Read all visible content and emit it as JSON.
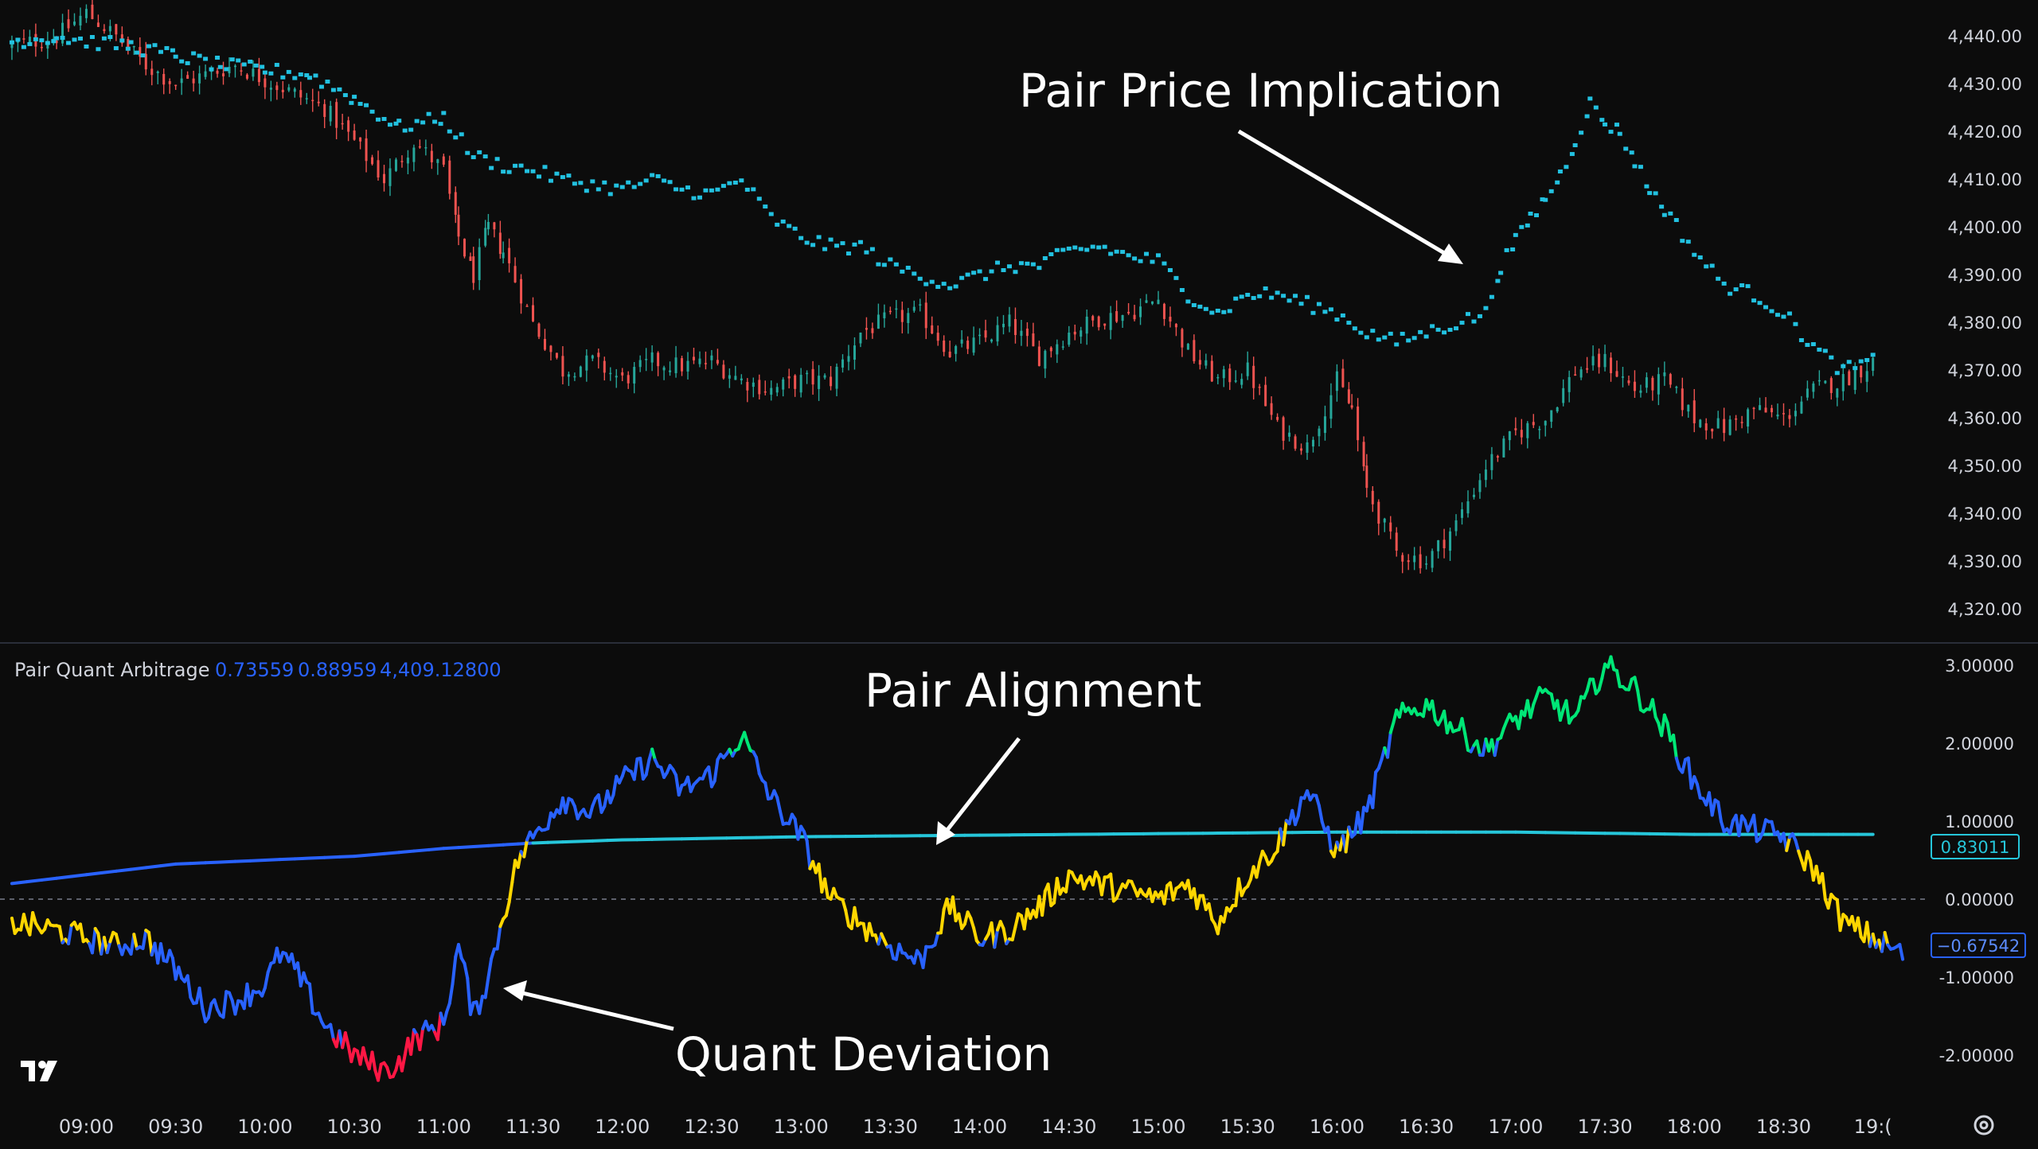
{
  "price_axis": [
    "4,440.00",
    "4,430.00",
    "4,420.00",
    "4,410.00",
    "4,400.00",
    "4,390.00",
    "4,380.00",
    "4,370.00",
    "4,360.00",
    "4,350.00",
    "4,340.00",
    "4,330.00",
    "4,320.00"
  ],
  "osc_axis": [
    "3.00000",
    "2.00000",
    "1.00000",
    "0.00000",
    "-1.00000",
    "-2.00000"
  ],
  "time_axis": [
    "09:00",
    "09:30",
    "10:00",
    "10:30",
    "11:00",
    "11:30",
    "12:00",
    "12:30",
    "13:00",
    "13:30",
    "14:00",
    "14:30",
    "15:00",
    "15:30",
    "16:00",
    "16:30",
    "17:00",
    "17:30",
    "18:00",
    "18:30",
    "19:("
  ],
  "indicator": {
    "name": "Pair Quant Arbitrage",
    "values": [
      "0.73559",
      "0.88959",
      "4,409.12800"
    ]
  },
  "badges": {
    "alignment": "0.83011",
    "deviation": "−0.67542"
  },
  "annotations": {
    "price_implication": "Pair Price Implication",
    "alignment": "Pair Alignment",
    "deviation": "Quant Deviation"
  },
  "colors": {
    "background": "#0c0c0c",
    "candle_up": "#26a69a",
    "candle_down": "#ef5350",
    "implied_dots": "#22c1e0",
    "alignment_line": "#26c6da",
    "alignment_line_early": "#2962ff",
    "osc_blue": "#2962ff",
    "osc_yellow": "#ffd600",
    "osc_green": "#00e676",
    "osc_red": "#ff1744"
  },
  "logo": "tradingview-logo",
  "settings_icon": "gear-icon",
  "chart_data": [
    {
      "type": "candlestick",
      "title": "",
      "ylim": [
        4316,
        4446
      ],
      "x_range": [
        "09:00",
        "19:00"
      ],
      "series": [
        {
          "name": "",
          "kind": "price-close",
          "points": [
            [
              "08:35",
              4438
            ],
            [
              "08:50",
              4440
            ],
            [
              "09:00",
              4445
            ],
            [
              "09:10",
              4440
            ],
            [
              "09:20",
              4434
            ],
            [
              "09:30",
              4430
            ],
            [
              "09:40",
              4432
            ],
            [
              "09:50",
              4434
            ],
            [
              "10:00",
              4431
            ],
            [
              "10:10",
              4428
            ],
            [
              "10:20",
              4425
            ],
            [
              "10:30",
              4418
            ],
            [
              "10:40",
              4410
            ],
            [
              "10:50",
              4418
            ],
            [
              "11:00",
              4412
            ],
            [
              "11:05",
              4398
            ],
            [
              "11:10",
              4390
            ],
            [
              "11:15",
              4400
            ],
            [
              "11:20",
              4395
            ],
            [
              "11:30",
              4380
            ],
            [
              "11:40",
              4370
            ],
            [
              "11:50",
              4372
            ],
            [
              "12:00",
              4368
            ],
            [
              "12:10",
              4372
            ],
            [
              "12:20",
              4371
            ],
            [
              "12:30",
              4372
            ],
            [
              "12:40",
              4368
            ],
            [
              "12:50",
              4366
            ],
            [
              "13:00",
              4368
            ],
            [
              "13:10",
              4368
            ],
            [
              "13:20",
              4378
            ],
            [
              "13:30",
              4381
            ],
            [
              "13:40",
              4382
            ],
            [
              "13:50",
              4374
            ],
            [
              "14:00",
              4376
            ],
            [
              "14:10",
              4380
            ],
            [
              "14:20",
              4373
            ],
            [
              "14:30",
              4378
            ],
            [
              "14:40",
              4381
            ],
            [
              "14:50",
              4382
            ],
            [
              "15:00",
              4385
            ],
            [
              "15:10",
              4374
            ],
            [
              "15:20",
              4368
            ],
            [
              "15:30",
              4370
            ],
            [
              "15:40",
              4358
            ],
            [
              "15:50",
              4354
            ],
            [
              "16:00",
              4368
            ],
            [
              "16:05",
              4362
            ],
            [
              "16:10",
              4345
            ],
            [
              "16:20",
              4332
            ],
            [
              "16:30",
              4330
            ],
            [
              "16:40",
              4338
            ],
            [
              "16:50",
              4350
            ],
            [
              "17:00",
              4357
            ],
            [
              "17:10",
              4360
            ],
            [
              "17:20",
              4370
            ],
            [
              "17:30",
              4372
            ],
            [
              "17:40",
              4366
            ],
            [
              "17:50",
              4368
            ],
            [
              "18:00",
              4360
            ],
            [
              "18:10",
              4358
            ],
            [
              "18:20",
              4362
            ],
            [
              "18:30",
              4360
            ],
            [
              "18:40",
              4366
            ],
            [
              "18:50",
              4368
            ],
            [
              "19:00",
              4372
            ]
          ]
        },
        {
          "name": "",
          "kind": "implied-price-dots",
          "points": [
            [
              "08:35",
              4439
            ],
            [
              "08:50",
              4440
            ],
            [
              "09:00",
              4439
            ],
            [
              "09:15",
              4438
            ],
            [
              "09:30",
              4436
            ],
            [
              "09:45",
              4434
            ],
            [
              "10:00",
              4433
            ],
            [
              "10:15",
              4432
            ],
            [
              "10:30",
              4427
            ],
            [
              "10:45",
              4421
            ],
            [
              "11:00",
              4423
            ],
            [
              "11:10",
              4415
            ],
            [
              "11:20",
              4413
            ],
            [
              "11:30",
              4412
            ],
            [
              "11:40",
              4410
            ],
            [
              "11:50",
              4409
            ],
            [
              "12:00",
              4408
            ],
            [
              "12:10",
              4410
            ],
            [
              "12:20",
              4408
            ],
            [
              "12:30",
              4407
            ],
            [
              "12:40",
              4410
            ],
            [
              "12:50",
              4402
            ],
            [
              "13:00",
              4398
            ],
            [
              "13:10",
              4396
            ],
            [
              "13:20",
              4396
            ],
            [
              "13:30",
              4392
            ],
            [
              "13:40",
              4390
            ],
            [
              "13:50",
              4388
            ],
            [
              "14:00",
              4390
            ],
            [
              "14:10",
              4392
            ],
            [
              "14:20",
              4392
            ],
            [
              "14:30",
              4395
            ],
            [
              "14:40",
              4396
            ],
            [
              "14:50",
              4394
            ],
            [
              "15:00",
              4393
            ],
            [
              "15:10",
              4386
            ],
            [
              "15:20",
              4382
            ],
            [
              "15:30",
              4386
            ],
            [
              "15:40",
              4386
            ],
            [
              "15:50",
              4384
            ],
            [
              "16:00",
              4382
            ],
            [
              "16:10",
              4378
            ],
            [
              "16:20",
              4376
            ],
            [
              "16:30",
              4378
            ],
            [
              "16:40",
              4380
            ],
            [
              "16:50",
              4382
            ],
            [
              "16:55",
              4392
            ],
            [
              "17:00",
              4397
            ],
            [
              "17:05",
              4402
            ],
            [
              "17:10",
              4406
            ],
            [
              "17:15",
              4411
            ],
            [
              "17:20",
              4418
            ],
            [
              "17:25",
              4426
            ],
            [
              "17:30",
              4422
            ],
            [
              "17:35",
              4420
            ],
            [
              "17:40",
              4414
            ],
            [
              "17:45",
              4408
            ],
            [
              "17:50",
              4404
            ],
            [
              "18:00",
              4395
            ],
            [
              "18:10",
              4388
            ],
            [
              "18:20",
              4386
            ],
            [
              "18:30",
              4382
            ],
            [
              "18:40",
              4375
            ],
            [
              "18:50",
              4370
            ],
            [
              "19:00",
              4372
            ]
          ]
        }
      ]
    },
    {
      "type": "line",
      "title": "Pair Quant Arbitrage",
      "ylim": [
        -2.6,
        3.6
      ],
      "series": [
        {
          "name": "",
          "kind": "oscillator",
          "color_states": [
            "blue",
            "yellow",
            "green",
            "red"
          ],
          "points": [
            [
              "08:35",
              -0.3
            ],
            [
              "08:50",
              -0.4
            ],
            [
              "09:00",
              -0.5
            ],
            [
              "09:10",
              -0.6
            ],
            [
              "09:20",
              -0.5
            ],
            [
              "09:30",
              -0.9
            ],
            [
              "09:40",
              -1.4
            ],
            [
              "09:50",
              -1.3
            ],
            [
              "10:00",
              -1.1
            ],
            [
              "10:05",
              -0.7
            ],
            [
              "10:10",
              -0.9
            ],
            [
              "10:20",
              -1.6
            ],
            [
              "10:30",
              -2.0
            ],
            [
              "10:40",
              -2.2
            ],
            [
              "10:45",
              -2.1
            ],
            [
              "10:50",
              -1.8
            ],
            [
              "11:00",
              -1.6
            ],
            [
              "11:05",
              -0.6
            ],
            [
              "11:10",
              -1.5
            ],
            [
              "11:15",
              -1.0
            ],
            [
              "11:20",
              -0.2
            ],
            [
              "11:25",
              0.5
            ],
            [
              "11:30",
              0.8
            ],
            [
              "11:40",
              1.3
            ],
            [
              "11:50",
              1.1
            ],
            [
              "12:00",
              1.5
            ],
            [
              "12:10",
              1.8
            ],
            [
              "12:20",
              1.4
            ],
            [
              "12:30",
              1.6
            ],
            [
              "12:40",
              2.1
            ],
            [
              "12:50",
              1.3
            ],
            [
              "13:00",
              0.8
            ],
            [
              "13:10",
              0.0
            ],
            [
              "13:20",
              -0.3
            ],
            [
              "13:30",
              -0.6
            ],
            [
              "13:40",
              -0.8
            ],
            [
              "13:50",
              -0.1
            ],
            [
              "14:00",
              -0.5
            ],
            [
              "14:10",
              -0.4
            ],
            [
              "14:20",
              -0.1
            ],
            [
              "14:30",
              0.3
            ],
            [
              "14:40",
              0.2
            ],
            [
              "14:50",
              0.1
            ],
            [
              "15:00",
              0.0
            ],
            [
              "15:10",
              0.2
            ],
            [
              "15:20",
              -0.3
            ],
            [
              "15:30",
              0.3
            ],
            [
              "15:40",
              0.7
            ],
            [
              "15:50",
              1.4
            ],
            [
              "16:00",
              0.6
            ],
            [
              "16:10",
              1.1
            ],
            [
              "16:20",
              2.3
            ],
            [
              "16:30",
              2.5
            ],
            [
              "16:40",
              2.2
            ],
            [
              "16:50",
              1.9
            ],
            [
              "17:00",
              2.3
            ],
            [
              "17:10",
              2.6
            ],
            [
              "17:20",
              2.3
            ],
            [
              "17:30",
              3.0
            ],
            [
              "17:40",
              2.7
            ],
            [
              "17:50",
              2.2
            ],
            [
              "18:00",
              1.5
            ],
            [
              "18:10",
              1.0
            ],
            [
              "18:20",
              0.9
            ],
            [
              "18:30",
              0.8
            ],
            [
              "18:40",
              0.4
            ],
            [
              "18:50",
              -0.3
            ],
            [
              "19:00",
              -0.5
            ],
            [
              "19:10",
              -0.7
            ]
          ]
        },
        {
          "name": "",
          "kind": "alignment-line",
          "points": [
            [
              "08:35",
              0.2
            ],
            [
              "09:30",
              0.45
            ],
            [
              "10:30",
              0.55
            ],
            [
              "11:00",
              0.65
            ],
            [
              "11:30",
              0.72
            ],
            [
              "12:00",
              0.76
            ],
            [
              "13:00",
              0.8
            ],
            [
              "14:00",
              0.82
            ],
            [
              "15:00",
              0.84
            ],
            [
              "16:00",
              0.86
            ],
            [
              "17:00",
              0.86
            ],
            [
              "18:00",
              0.83
            ],
            [
              "19:00",
              0.83
            ]
          ]
        }
      ]
    }
  ]
}
